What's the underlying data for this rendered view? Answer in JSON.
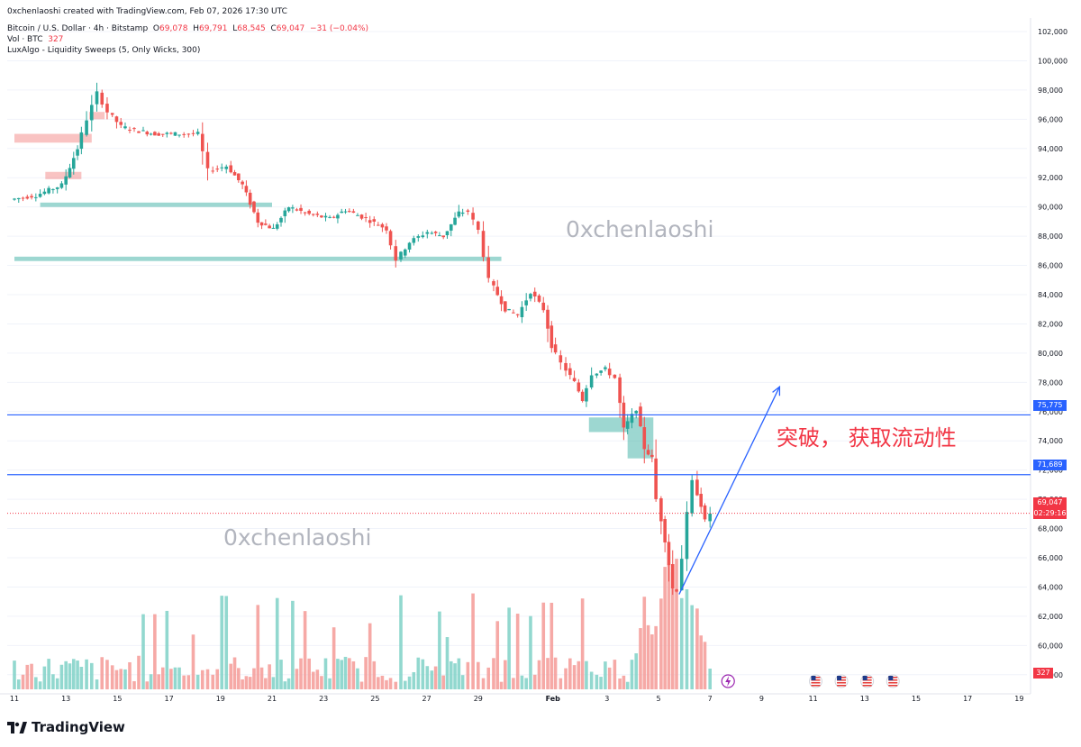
{
  "header": {
    "credit": "0xchenlaoshi created with TradingView.com, Feb 07, 2026 17:30 UTC",
    "symbol": "Bitcoin / U.S. Dollar · 4h · Bitstamp",
    "o_label": "O",
    "o_value": "69,078",
    "h_label": "H",
    "h_value": "69,791",
    "l_label": "L",
    "l_value": "68,545",
    "c_label": "C",
    "c_value": "69,047",
    "change": "−31 (−0.04%)",
    "vol_label": "Vol · BTC",
    "vol_value": "327",
    "indicator": "LuxAlgo - Liquidity Sweeps (5, Only Wicks, 300)"
  },
  "watermark": "0xchenlaoshi",
  "annotation": "突破， 获取流动性",
  "price_tags": {
    "level_high": "75,775",
    "level_low": "71,689",
    "last_price": "69,047",
    "countdown": "02:29:16",
    "volume": "327"
  },
  "footer": {
    "brand": "TradingView"
  },
  "colors": {
    "up": "#26a69a",
    "down": "#ef5350",
    "level": "#2962ff",
    "annotation": "#f23645",
    "sweep_up_zone": "#26a69a",
    "sweep_down_zone": "#ef5350"
  },
  "chart_data": {
    "type": "candlestick",
    "price_axis_ticks": [
      "58,000",
      "60,000",
      "62,000",
      "64,000",
      "66,000",
      "68,000",
      "70,000",
      "72,000",
      "74,000",
      "76,000",
      "78,000",
      "80,000",
      "82,000",
      "84,000",
      "86,000",
      "88,000",
      "90,000",
      "92,000",
      "94,000",
      "96,000",
      "98,000",
      "100,000",
      "102,000"
    ],
    "time_axis_ticks": [
      "11",
      "13",
      "15",
      "17",
      "19",
      "21",
      "23",
      "25",
      "27",
      "29",
      "Feb",
      "3",
      "5",
      "7",
      "9",
      "11",
      "13",
      "15",
      "17",
      "19"
    ],
    "ylim": [
      57000,
      102000
    ],
    "horizontal_levels": [
      75775,
      71689
    ],
    "last_price": 69047,
    "price_path": [
      [
        11,
        90500
      ],
      [
        12,
        90800
      ],
      [
        13,
        91500
      ],
      [
        13.6,
        94000
      ],
      [
        14,
        96000
      ],
      [
        14.4,
        97800
      ],
      [
        14.8,
        96500
      ],
      [
        15.3,
        95500
      ],
      [
        16,
        95200
      ],
      [
        16.6,
        95000
      ],
      [
        17.4,
        95000
      ],
      [
        18.3,
        95000
      ],
      [
        18.7,
        92500
      ],
      [
        19.4,
        92800
      ],
      [
        20,
        91500
      ],
      [
        20.6,
        89000
      ],
      [
        21.2,
        88500
      ],
      [
        21.8,
        90000
      ],
      [
        22.6,
        89500
      ],
      [
        23.4,
        89200
      ],
      [
        24,
        89800
      ],
      [
        24.8,
        89200
      ],
      [
        25.6,
        88500
      ],
      [
        26,
        86400
      ],
      [
        26.5,
        87600
      ],
      [
        27.2,
        88300
      ],
      [
        27.8,
        88000
      ],
      [
        28.4,
        89600
      ],
      [
        28.8,
        89700
      ],
      [
        29.2,
        88400
      ],
      [
        29.6,
        85000
      ],
      [
        30.2,
        83000
      ],
      [
        30.7,
        82600
      ],
      [
        31.2,
        84200
      ],
      [
        31.7,
        83000
      ],
      [
        32,
        80500
      ],
      [
        32.4,
        79300
      ],
      [
        32.9,
        78000
      ],
      [
        33.2,
        76800
      ],
      [
        33.6,
        78600
      ],
      [
        34.1,
        78900
      ],
      [
        34.5,
        78300
      ],
      [
        34.8,
        74800
      ],
      [
        35.3,
        76200
      ],
      [
        35.6,
        73500
      ],
      [
        35.9,
        72800
      ],
      [
        36.1,
        70000
      ],
      [
        36.4,
        67200
      ],
      [
        36.7,
        63900
      ],
      [
        36.9,
        63800
      ],
      [
        37.1,
        66000
      ],
      [
        37.3,
        69000
      ],
      [
        37.5,
        71200
      ],
      [
        37.8,
        69600
      ],
      [
        38,
        68500
      ],
      [
        38.2,
        69047
      ]
    ],
    "volume_bars": {
      "note": "4h volume histogram, relative heights",
      "peak_day": 36.5
    },
    "liquidity_zones": [
      {
        "kind": "sell",
        "from_day": 11,
        "to_day": 14,
        "low": 94400,
        "high": 95000
      },
      {
        "kind": "sell",
        "from_day": 12.2,
        "to_day": 13.6,
        "low": 91900,
        "high": 92400
      },
      {
        "kind": "sell",
        "from_day": 13.9,
        "to_day": 14.5,
        "low": 96000,
        "high": 96500
      },
      {
        "kind": "buy",
        "from_day": 12,
        "to_day": 21,
        "low": 90000,
        "high": 90300
      },
      {
        "kind": "buy",
        "from_day": 11,
        "to_day": 29.9,
        "low": 86300,
        "high": 86600
      },
      {
        "kind": "buy",
        "from_day": 33.3,
        "to_day": 35.8,
        "low": 74600,
        "high": 75600
      },
      {
        "kind": "buy",
        "from_day": 34.8,
        "to_day": 35.8,
        "low": 72800,
        "high": 74600
      }
    ],
    "projection_arrow": {
      "from": [
        36.8,
        63500
      ],
      "to": [
        40.7,
        77700
      ]
    }
  }
}
